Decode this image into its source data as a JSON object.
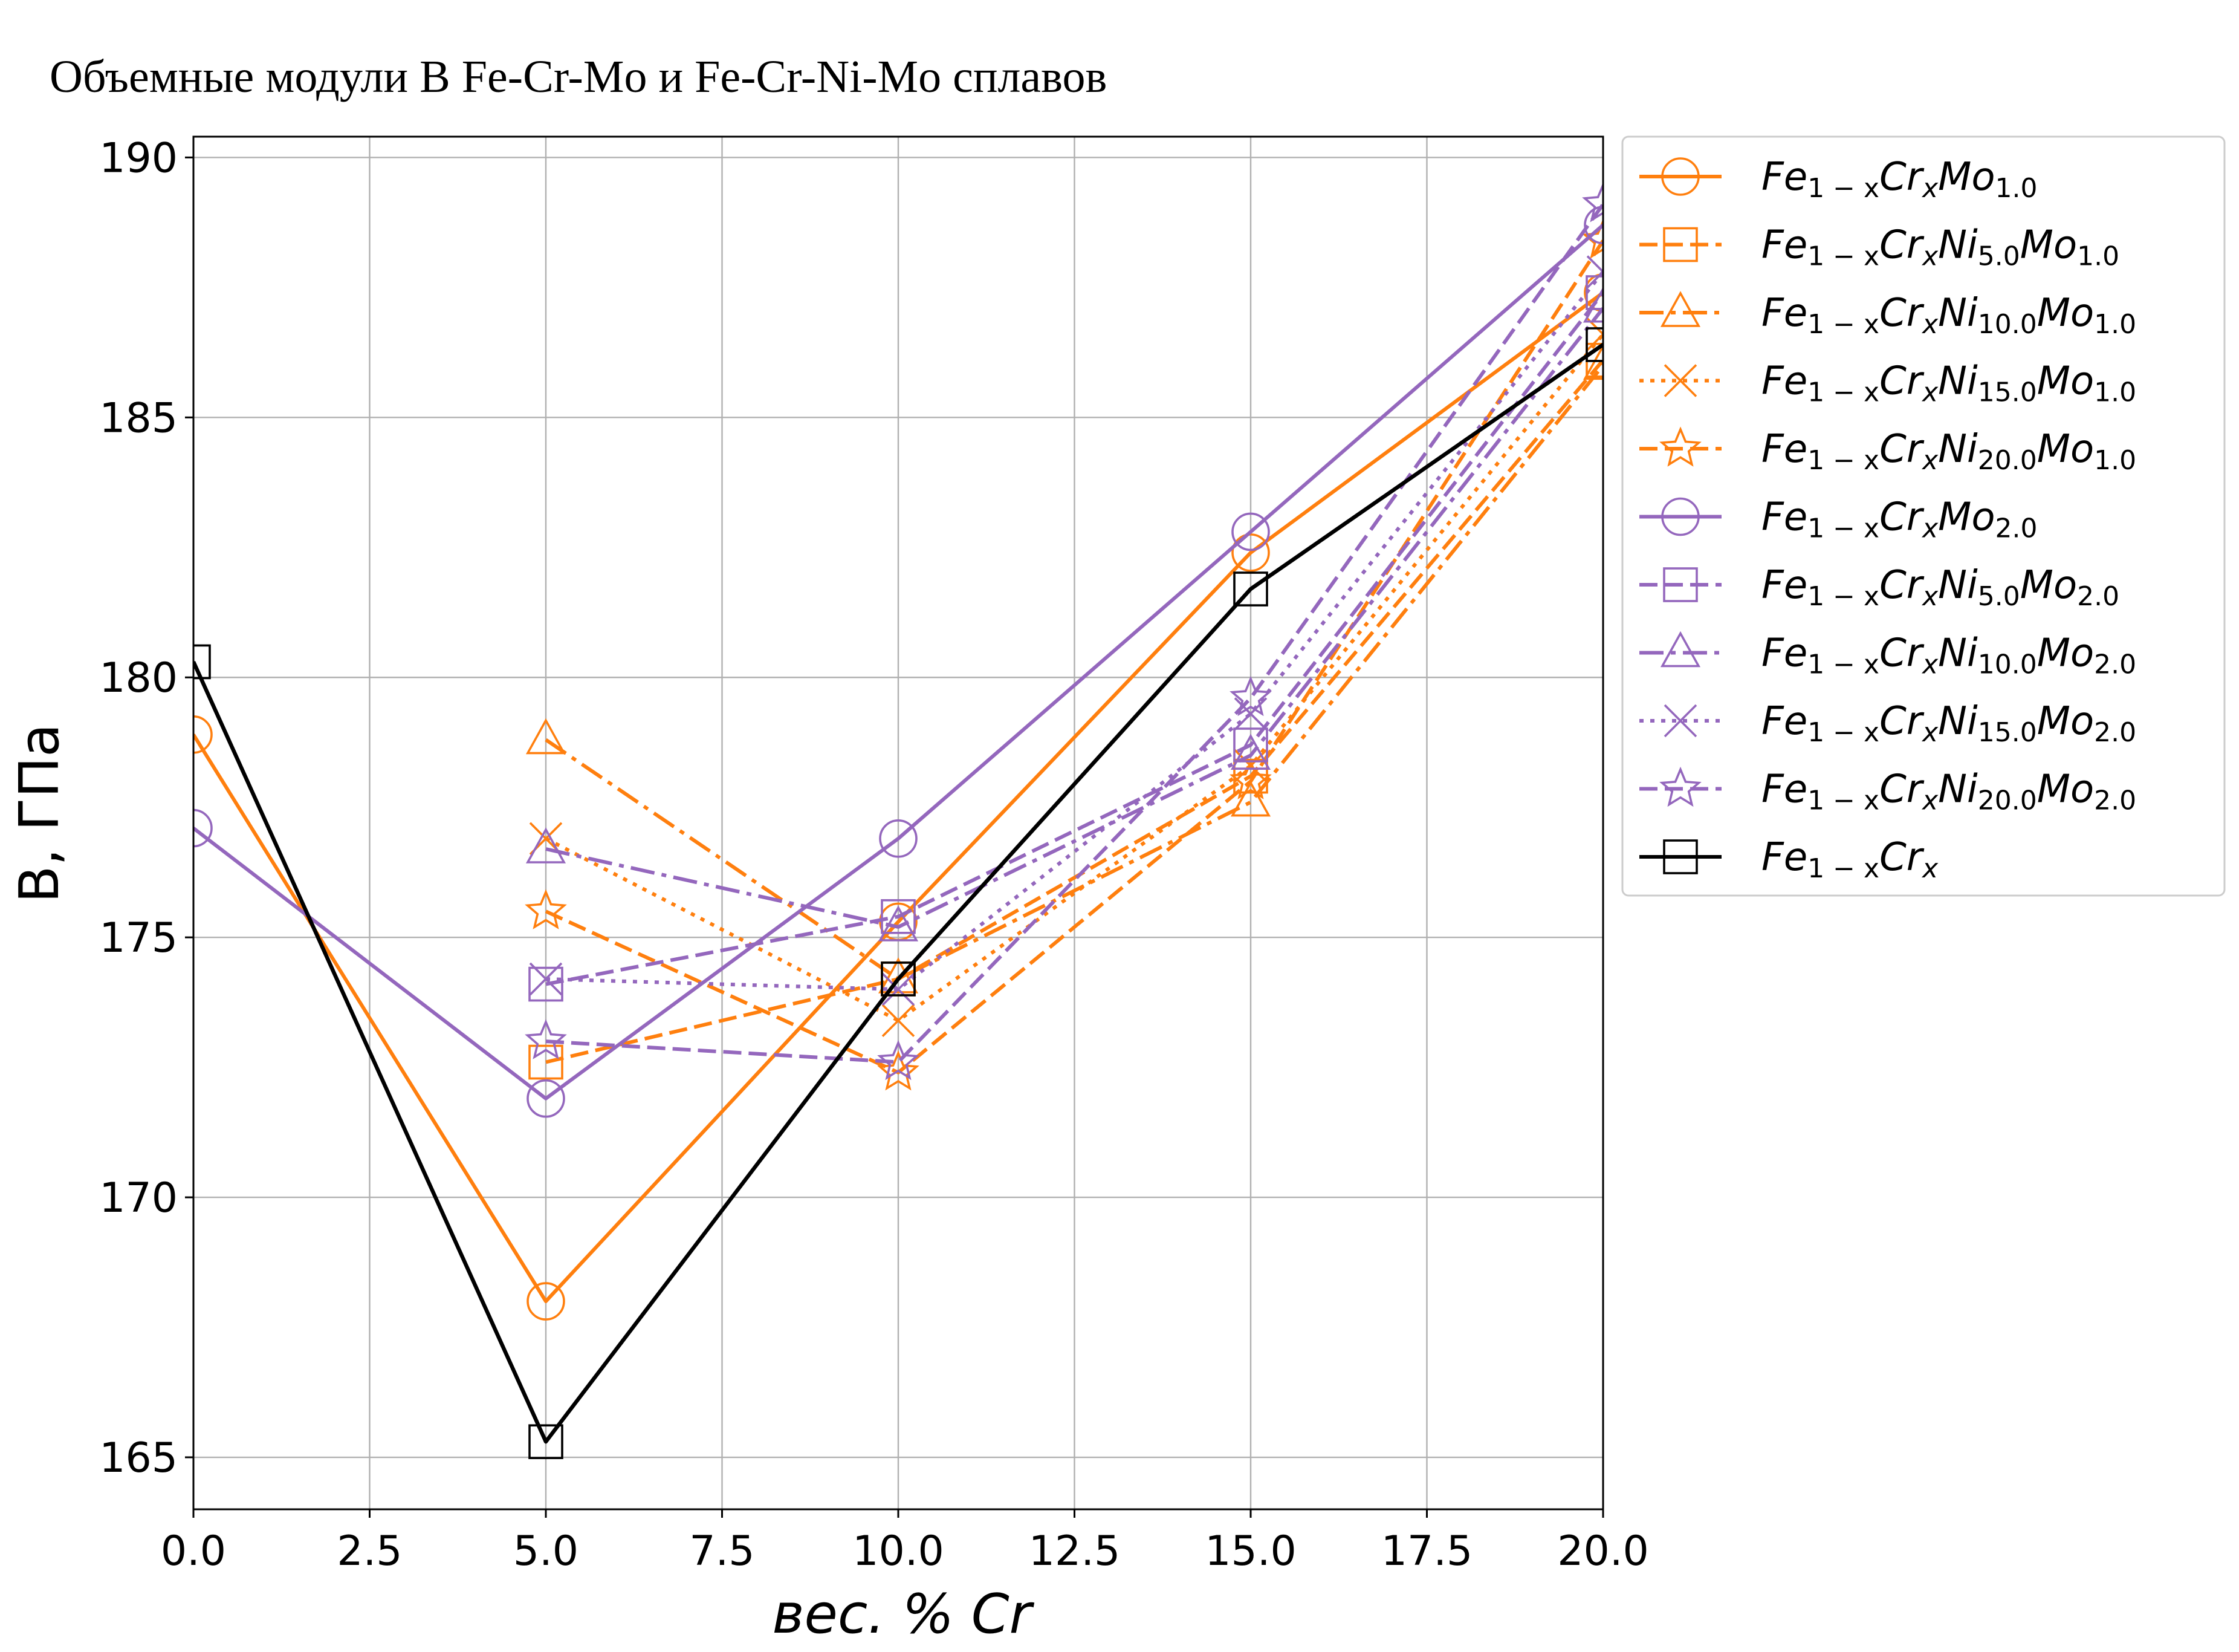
{
  "chart_data": {
    "type": "line",
    "title": "Объемные модули B Fe-Cr-Mo и Fe-Cr-Ni-Mo сплавов",
    "xlabel": "вес. % Cr",
    "ylabel": "B, ГПа",
    "xlim": [
      0,
      20
    ],
    "ylim": [
      164,
      190.4
    ],
    "xticks": [
      "0.0",
      "2.5",
      "5.0",
      "7.5",
      "10.0",
      "12.5",
      "15.0",
      "17.5",
      "20.0"
    ],
    "yticks": [
      "165",
      "170",
      "175",
      "180",
      "185",
      "190"
    ],
    "grid": true,
    "legend_position": "outside-right",
    "series": [
      {
        "name": "Fe1-xCrxMo1.0",
        "color": "#ff7f0e",
        "marker": "circle",
        "linestyle": "solid",
        "x": [
          0,
          5,
          10,
          15,
          20
        ],
        "y": [
          178.9,
          168.0,
          175.3,
          182.4,
          187.4
        ]
      },
      {
        "name": "Fe1-xCrxNi5.0Mo1.0",
        "color": "#ff7f0e",
        "marker": "square",
        "linestyle": "dashed",
        "x": [
          5,
          10,
          15,
          20
        ],
        "y": [
          172.6,
          174.2,
          178.1,
          186.1
        ]
      },
      {
        "name": "Fe1-xCrxNi10.0Mo1.0",
        "color": "#ff7f0e",
        "marker": "triangle",
        "linestyle": "dashdot",
        "x": [
          5,
          10,
          15,
          20
        ],
        "y": [
          178.8,
          174.2,
          177.6,
          186.0
        ]
      },
      {
        "name": "Fe1-xCrxNi15.0Mo1.0",
        "color": "#ff7f0e",
        "marker": "x",
        "linestyle": "dotted",
        "x": [
          5,
          10,
          15,
          20
        ],
        "y": [
          176.9,
          173.4,
          178.3,
          186.6
        ]
      },
      {
        "name": "Fe1-xCrxNi20.0Mo1.0",
        "color": "#ff7f0e",
        "marker": "star",
        "linestyle": "dashed",
        "x": [
          5,
          10,
          15,
          20
        ],
        "y": [
          175.5,
          172.4,
          178.0,
          188.4
        ]
      },
      {
        "name": "Fe1-xCrxMo2.0",
        "color": "#9467bd",
        "marker": "circle",
        "linestyle": "solid",
        "x": [
          0,
          5,
          10,
          15,
          20
        ],
        "y": [
          177.1,
          171.9,
          176.9,
          182.8,
          188.7
        ]
      },
      {
        "name": "Fe1-xCrxNi5.0Mo2.0",
        "color": "#9467bd",
        "marker": "square",
        "linestyle": "dashed",
        "x": [
          5,
          10,
          15,
          20
        ],
        "y": [
          174.1,
          175.4,
          178.7,
          187.4
        ]
      },
      {
        "name": "Fe1-xCrxNi10.0Mo2.0",
        "color": "#9467bd",
        "marker": "triangle",
        "linestyle": "dashdot",
        "x": [
          5,
          10,
          15,
          20
        ],
        "y": [
          176.7,
          175.2,
          178.5,
          187.1
        ]
      },
      {
        "name": "Fe1-xCrxNi15.0Mo2.0",
        "color": "#9467bd",
        "marker": "x",
        "linestyle": "dotted",
        "x": [
          5,
          10,
          15,
          20
        ],
        "y": [
          174.2,
          174.0,
          179.3,
          187.8
        ]
      },
      {
        "name": "Fe1-xCrxNi20.0Mo2.0",
        "color": "#9467bd",
        "marker": "star",
        "linestyle": "dashed",
        "x": [
          5,
          10,
          15,
          20
        ],
        "y": [
          173.0,
          172.6,
          179.6,
          189.1
        ]
      },
      {
        "name": "Fe1-xCrx",
        "color": "#000000",
        "marker": "square",
        "linestyle": "solid",
        "x": [
          0,
          5,
          10,
          15,
          20
        ],
        "y": [
          180.3,
          165.3,
          174.2,
          181.7,
          186.4
        ]
      }
    ],
    "legend_entries": [
      {
        "base": "Fe",
        "sub1": "1 − x",
        "mid": "Cr",
        "sub2": "x",
        "rest": [
          [
            "Mo",
            "1.0"
          ]
        ]
      },
      {
        "base": "Fe",
        "sub1": "1 − x",
        "mid": "Cr",
        "sub2": "x",
        "rest": [
          [
            "Ni",
            "5.0"
          ],
          [
            "Mo",
            "1.0"
          ]
        ]
      },
      {
        "base": "Fe",
        "sub1": "1 − x",
        "mid": "Cr",
        "sub2": "x",
        "rest": [
          [
            "Ni",
            "10.0"
          ],
          [
            "Mo",
            "1.0"
          ]
        ]
      },
      {
        "base": "Fe",
        "sub1": "1 − x",
        "mid": "Cr",
        "sub2": "x",
        "rest": [
          [
            "Ni",
            "15.0"
          ],
          [
            "Mo",
            "1.0"
          ]
        ]
      },
      {
        "base": "Fe",
        "sub1": "1 − x",
        "mid": "Cr",
        "sub2": "x",
        "rest": [
          [
            "Ni",
            "20.0"
          ],
          [
            "Mo",
            "1.0"
          ]
        ]
      },
      {
        "base": "Fe",
        "sub1": "1 − x",
        "mid": "Cr",
        "sub2": "x",
        "rest": [
          [
            "Mo",
            "2.0"
          ]
        ]
      },
      {
        "base": "Fe",
        "sub1": "1 − x",
        "mid": "Cr",
        "sub2": "x",
        "rest": [
          [
            "Ni",
            "5.0"
          ],
          [
            "Mo",
            "2.0"
          ]
        ]
      },
      {
        "base": "Fe",
        "sub1": "1 − x",
        "mid": "Cr",
        "sub2": "x",
        "rest": [
          [
            "Ni",
            "10.0"
          ],
          [
            "Mo",
            "2.0"
          ]
        ]
      },
      {
        "base": "Fe",
        "sub1": "1 − x",
        "mid": "Cr",
        "sub2": "x",
        "rest": [
          [
            "Ni",
            "15.0"
          ],
          [
            "Mo",
            "2.0"
          ]
        ]
      },
      {
        "base": "Fe",
        "sub1": "1 − x",
        "mid": "Cr",
        "sub2": "x",
        "rest": [
          [
            "Ni",
            "20.0"
          ],
          [
            "Mo",
            "2.0"
          ]
        ]
      },
      {
        "base": "Fe",
        "sub1": "1 − x",
        "mid": "Cr",
        "sub2": "x",
        "rest": []
      }
    ]
  }
}
